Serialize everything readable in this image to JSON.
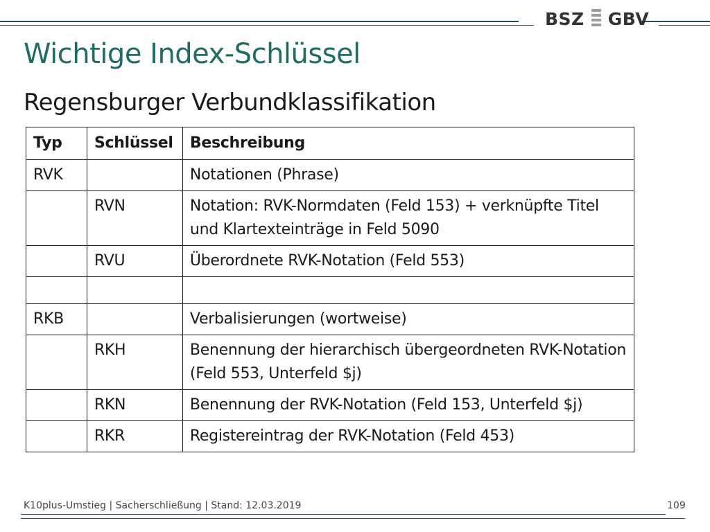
{
  "header": {
    "logo_left": "BSZ",
    "logo_right": "GBV"
  },
  "title": "Wichtige Index-Schlüssel",
  "subtitle": "Regensburger Verbundklassifikation",
  "table": {
    "headers": [
      "Typ",
      "Schlüssel",
      "Beschreibung"
    ],
    "rows": [
      [
        "RVK",
        "",
        "Notationen (Phrase)"
      ],
      [
        "",
        "RVN",
        "Notation: RVK-Normdaten (Feld 153) + verknüpfte Titel und Klartexteinträge in Feld 5090"
      ],
      [
        "",
        "RVU",
        "Überordnete RVK-Notation (Feld 553)"
      ],
      [
        "",
        "",
        ""
      ],
      [
        "RKB",
        "",
        "Verbalisierungen (wortweise)"
      ],
      [
        "",
        "RKH",
        "Benennung der hierarchisch übergeordneten RVK-Notation (Feld 553, Unterfeld $j)"
      ],
      [
        "",
        "RKN",
        "Benennung der RVK-Notation (Feld 153, Unterfeld $j)"
      ],
      [
        "",
        "RKR",
        "Registereintrag der RVK-Notation (Feld 453)"
      ]
    ]
  },
  "footer": {
    "text": "K10plus-Umstieg | Sacherschließung | Stand: 12.03.2019",
    "page_number": "109"
  },
  "colors": {
    "title": "#1f6b66",
    "rules": "#2f4a5a",
    "logo_mark": "#9a9a9a"
  }
}
